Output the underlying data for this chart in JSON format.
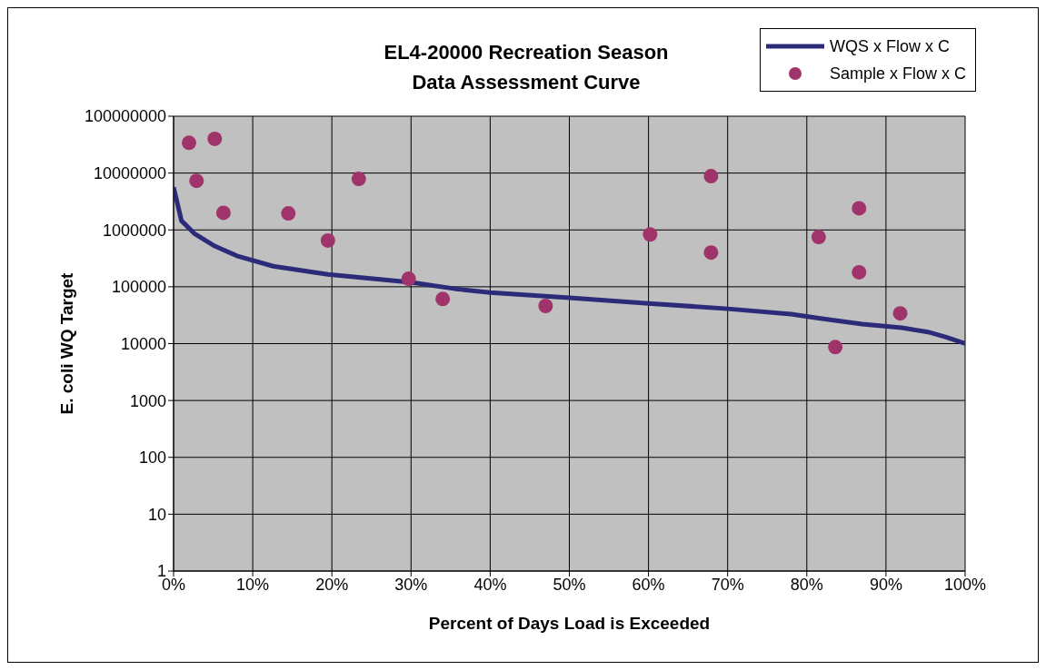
{
  "chart_data": {
    "type": "line",
    "title": "EL4-20000 Recreation Season Data Assessment Curve",
    "xlabel": "Percent of Days Load is Exceeded",
    "ylabel": "E. coli WQ Target",
    "log": "y",
    "grid": true,
    "legend": "top right",
    "xlim": [
      0,
      100
    ],
    "xticks": [
      {
        "value": 0,
        "label": "0%"
      },
      {
        "value": 10,
        "label": "10%"
      },
      {
        "value": 20,
        "label": "20%"
      },
      {
        "value": 30,
        "label": "30%"
      },
      {
        "value": 40,
        "label": "40%"
      },
      {
        "value": 50,
        "label": "50%"
      },
      {
        "value": 60,
        "label": "60%"
      },
      {
        "value": 70,
        "label": "70%"
      },
      {
        "value": 80,
        "label": "80%"
      },
      {
        "value": 90,
        "label": "90%"
      },
      {
        "value": 100,
        "label": "100%"
      }
    ],
    "ylim": [
      1,
      100000000
    ],
    "yticks": [
      1,
      10,
      100,
      1000,
      10000,
      100000,
      1000000,
      10000000,
      100000000
    ],
    "series": [
      {
        "name": "WQS x Flow x C",
        "color": "#2b2b7a",
        "marker": "none",
        "line_style": "solid",
        "x": [
          0,
          1,
          2.6,
          5.2,
          8,
          12.6,
          19.5,
          30,
          35.6,
          40,
          50,
          60,
          70,
          78,
          81.5,
          87,
          92,
          95.3,
          97.6,
          100
        ],
        "values": [
          5600000,
          1450000,
          870000,
          520000,
          350000,
          230000,
          165000,
          120000,
          92000,
          79000,
          64000,
          51000,
          41000,
          33000,
          28000,
          22000,
          19000,
          16000,
          13000,
          10000
        ]
      },
      {
        "name": "Sample x Flow x C",
        "type": "scatter",
        "color": "#a0336a",
        "marker": "circle",
        "x": [
          1.95,
          2.9,
          5.2,
          6.3,
          14.5,
          19.5,
          23.4,
          29.7,
          34,
          47,
          60.2,
          67.9,
          67.9,
          81.5,
          86.6,
          86.6,
          83.6,
          91.8
        ],
        "values": [
          34000000,
          7300000,
          40000000,
          2000000,
          1950000,
          650000,
          7900000,
          138000,
          61000,
          46000,
          830000,
          8800000,
          400000,
          750000,
          2400000,
          180000,
          8700,
          34000
        ]
      }
    ]
  }
}
